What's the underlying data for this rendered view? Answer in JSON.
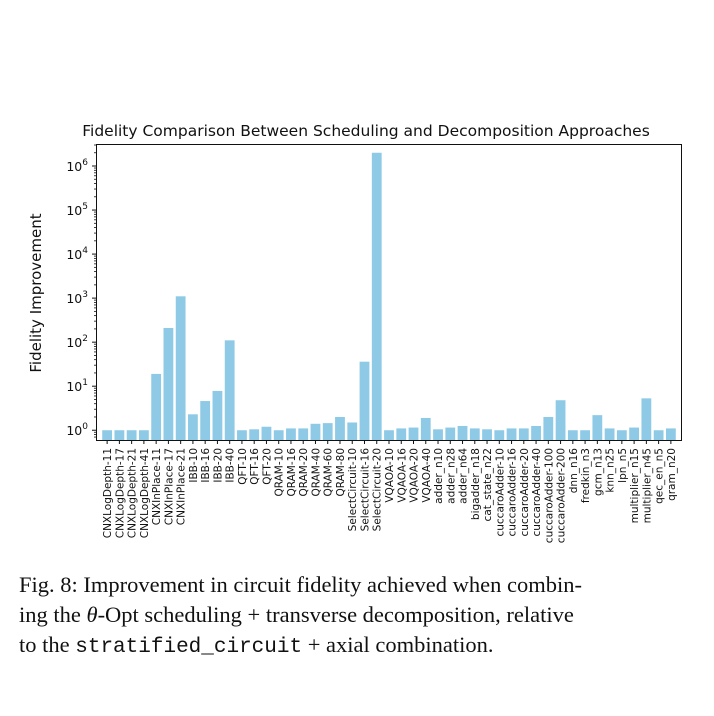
{
  "chart_data": {
    "type": "bar",
    "title": "Fidelity Comparison Between Scheduling and Decomposition Approaches",
    "xlabel": "",
    "ylabel": "Fidelity Improvement",
    "yscale": "log",
    "ylim": [
      0.6,
      3000000
    ],
    "yticks": [
      1,
      10,
      100,
      1000,
      10000,
      100000,
      1000000
    ],
    "ytick_labels": [
      {
        "base": "10",
        "exp": "0"
      },
      {
        "base": "10",
        "exp": "1"
      },
      {
        "base": "10",
        "exp": "2"
      },
      {
        "base": "10",
        "exp": "3"
      },
      {
        "base": "10",
        "exp": "4"
      },
      {
        "base": "10",
        "exp": "5"
      },
      {
        "base": "10",
        "exp": "6"
      }
    ],
    "grid": false,
    "bar_color": "#8ecae6",
    "categories": [
      "CNXLogDepth-11",
      "CNXLogDepth-17",
      "CNXLogDepth-21",
      "CNXLogDepth-41",
      "CNXInPlace-11",
      "CNXInPlace-17",
      "CNXInPlace-21",
      "IBB-10",
      "IBB-16",
      "IBB-20",
      "IBB-40",
      "QFT-10",
      "QFT-16",
      "QFT-20",
      "QRAM-10",
      "QRAM-16",
      "QRAM-20",
      "QRAM-40",
      "QRAM-60",
      "QRAM-80",
      "SelectCircuit-10",
      "SelectCircuit-16",
      "SelectCircuit-20",
      "VQAOA-10",
      "VQAOA-16",
      "VQAOA-20",
      "VQAOA-40",
      "adder_n10",
      "adder_n28",
      "adder_n64",
      "bigadder_n18",
      "cat_state_n22",
      "cuccaroAdder-10",
      "cuccaroAdder-16",
      "cuccaroAdder-20",
      "cuccaroAdder-40",
      "cuccaroAdder-100",
      "cuccaroAdder-200",
      "dnn_n16",
      "fredkin_n3",
      "gcm_n13",
      "knn_n25",
      "lpn_n5",
      "multiplier_n15",
      "multiplier_n45",
      "qec_en_n5",
      "qram_n20"
    ],
    "values": [
      1.0,
      1.0,
      1.0,
      1.0,
      19,
      210,
      1100,
      2.3,
      4.6,
      7.8,
      110,
      1.0,
      1.05,
      1.2,
      1.0,
      1.1,
      1.1,
      1.4,
      1.45,
      2.0,
      1.5,
      36,
      2000000,
      1.0,
      1.1,
      1.15,
      1.9,
      1.05,
      1.15,
      1.25,
      1.1,
      1.05,
      1.0,
      1.1,
      1.1,
      1.25,
      2.0,
      4.8,
      1.0,
      1.0,
      2.2,
      1.1,
      1.0,
      1.15,
      5.3,
      1.0,
      1.1
    ]
  },
  "caption": {
    "prefix": "Fig. 8: Improvement in circuit fidelity achieved when combin-",
    "line2_a": "ing the ",
    "theta": "θ",
    "line2_b": "-Opt scheduling + transverse decomposition, relative",
    "line3_a": "to the ",
    "code": "stratified_circuit",
    "line3_b": " + axial combination."
  }
}
